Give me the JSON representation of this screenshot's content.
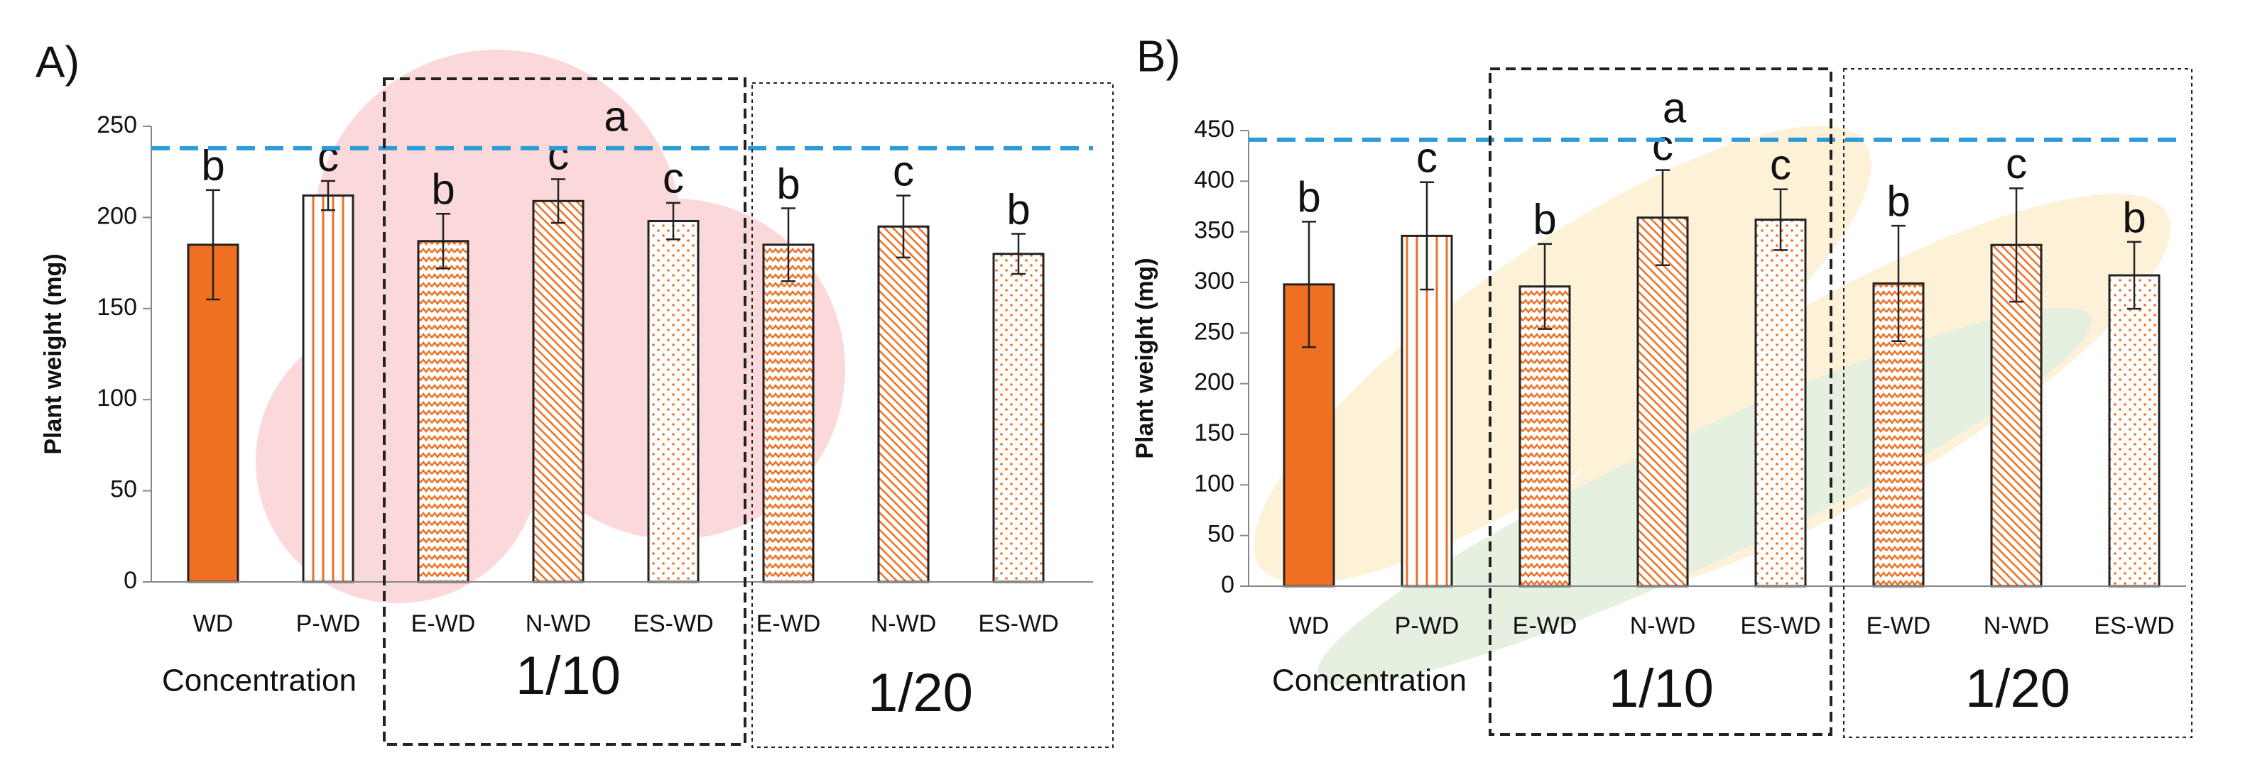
{
  "chart_data": [
    {
      "type": "bar",
      "panel_label": "A)",
      "ylabel": "Plant weight (mg)",
      "categories": [
        "WD",
        "P-WD",
        "E-WD",
        "N-WD",
        "ES-WD",
        "E-WD",
        "N-WD",
        "ES-WD"
      ],
      "values": [
        185,
        212,
        187,
        209,
        198,
        185,
        195,
        180
      ],
      "errors": [
        30,
        8,
        15,
        12,
        10,
        20,
        17,
        11
      ],
      "letters": [
        "b",
        "c",
        "b",
        "c",
        "c",
        "b",
        "c",
        "b"
      ],
      "reference_line": {
        "value": 238,
        "label": "a",
        "color": "#2e9ad6"
      },
      "color": "#f07022",
      "bar_patterns": [
        "solid",
        "vertical",
        "zigzag",
        "diagonal",
        "dots",
        "zigzag",
        "diagonal",
        "dots"
      ],
      "ylim": [
        0,
        250
      ],
      "yticks": [
        0,
        50,
        100,
        150,
        200,
        250
      ],
      "group_title": "Concentration",
      "groups": [
        "1/10",
        "1/20"
      ]
    },
    {
      "type": "bar",
      "panel_label": "B)",
      "ylabel": "Plant weight (mg)",
      "categories": [
        "WD",
        "P-WD",
        "E-WD",
        "N-WD",
        "ES-WD",
        "E-WD",
        "N-WD",
        "ES-WD"
      ],
      "values": [
        298,
        346,
        296,
        364,
        362,
        299,
        337,
        307
      ],
      "errors": [
        62,
        53,
        42,
        47,
        30,
        57,
        56,
        33
      ],
      "letters": [
        "b",
        "c",
        "b",
        "c",
        "c",
        "b",
        "c",
        "b"
      ],
      "reference_line": {
        "value": 441,
        "label": "a",
        "color": "#2e9ad6"
      },
      "color": "#f07022",
      "bar_patterns": [
        "solid",
        "vertical",
        "zigzag",
        "diagonal",
        "dots",
        "zigzag",
        "diagonal",
        "dots"
      ],
      "ylim": [
        0,
        450
      ],
      "yticks": [
        0,
        50,
        100,
        150,
        200,
        250,
        300,
        350,
        400,
        450
      ],
      "group_title": "Concentration",
      "groups": [
        "1/10",
        "1/20"
      ]
    }
  ]
}
